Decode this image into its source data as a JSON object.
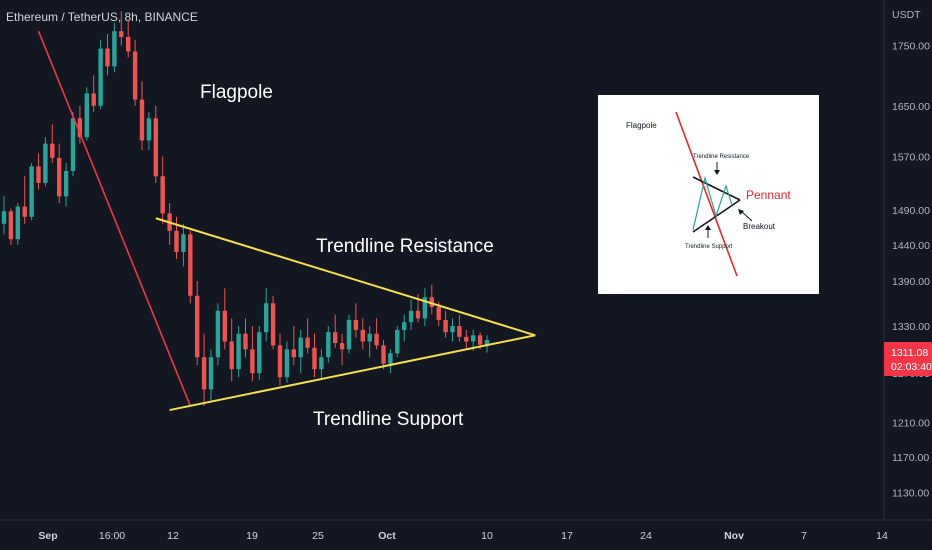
{
  "chart_data": {
    "type": "candlestick",
    "title": "Ethereum / TetherUS, 8h, BINANCE",
    "ylabel": "USDT",
    "ylim": [
      1100,
      1830
    ],
    "y_scale": "log",
    "y_ticks": [
      "1750.00",
      "1650.00",
      "1570.00",
      "1490.00",
      "1440.00",
      "1390.00",
      "1330.00",
      "1270.00",
      "1210.00",
      "1170.00",
      "1130.00"
    ],
    "x_ticks": [
      {
        "label": "Sep",
        "bold": true
      },
      {
        "label": "16:00",
        "bold": false
      },
      {
        "label": "12",
        "bold": false
      },
      {
        "label": "19",
        "bold": false
      },
      {
        "label": "25",
        "bold": false
      },
      {
        "label": "Oct",
        "bold": true
      },
      {
        "label": "10",
        "bold": false
      },
      {
        "label": "17",
        "bold": false
      },
      {
        "label": "24",
        "bold": false
      },
      {
        "label": "Nov",
        "bold": true
      },
      {
        "label": "7",
        "bold": false
      },
      {
        "label": "14",
        "bold": false
      }
    ],
    "last_price": {
      "value": "1311.08",
      "countdown": "02:03:40",
      "color": "#f23645"
    },
    "colors": {
      "up": "#26a69a",
      "down": "#ef5350",
      "pole": "#f23645",
      "trend": "#f5e04b"
    },
    "annotations": {
      "flagpole": "Flagpole",
      "resistance": "Trendline Resistance",
      "support": "Trendline Support"
    },
    "trendlines": {
      "flagpole": [
        [
          1775,
          5
        ],
        [
          1230,
          27
        ]
      ],
      "resistance": [
        [
          1478,
          22
        ],
        [
          1318,
          77
        ]
      ],
      "support": [
        [
          1225,
          24
        ],
        [
          1318,
          77
        ]
      ]
    },
    "bars": [
      [
        1470,
        1510,
        1455,
        1488
      ],
      [
        1488,
        1492,
        1440,
        1448
      ],
      [
        1448,
        1500,
        1440,
        1495
      ],
      [
        1495,
        1540,
        1470,
        1480
      ],
      [
        1480,
        1560,
        1475,
        1555
      ],
      [
        1555,
        1575,
        1520,
        1530
      ],
      [
        1530,
        1600,
        1525,
        1590
      ],
      [
        1590,
        1620,
        1560,
        1568
      ],
      [
        1568,
        1590,
        1500,
        1510
      ],
      [
        1510,
        1560,
        1495,
        1548
      ],
      [
        1548,
        1640,
        1540,
        1630
      ],
      [
        1630,
        1650,
        1590,
        1600
      ],
      [
        1600,
        1680,
        1595,
        1670
      ],
      [
        1670,
        1700,
        1640,
        1650
      ],
      [
        1650,
        1760,
        1645,
        1745
      ],
      [
        1745,
        1770,
        1700,
        1715
      ],
      [
        1715,
        1790,
        1705,
        1775
      ],
      [
        1775,
        1810,
        1750,
        1765
      ],
      [
        1765,
        1795,
        1730,
        1740
      ],
      [
        1740,
        1760,
        1650,
        1660
      ],
      [
        1660,
        1690,
        1580,
        1595
      ],
      [
        1595,
        1640,
        1580,
        1630
      ],
      [
        1630,
        1650,
        1530,
        1540
      ],
      [
        1540,
        1570,
        1470,
        1485
      ],
      [
        1485,
        1500,
        1440,
        1460
      ],
      [
        1460,
        1480,
        1420,
        1430
      ],
      [
        1430,
        1470,
        1410,
        1455
      ],
      [
        1455,
        1460,
        1360,
        1370
      ],
      [
        1370,
        1390,
        1280,
        1290
      ],
      [
        1290,
        1320,
        1230,
        1250
      ],
      [
        1250,
        1300,
        1235,
        1290
      ],
      [
        1290,
        1360,
        1280,
        1350
      ],
      [
        1350,
        1380,
        1300,
        1310
      ],
      [
        1310,
        1340,
        1260,
        1275
      ],
      [
        1275,
        1330,
        1265,
        1320
      ],
      [
        1320,
        1340,
        1290,
        1300
      ],
      [
        1300,
        1330,
        1260,
        1270
      ],
      [
        1270,
        1330,
        1262,
        1322
      ],
      [
        1322,
        1380,
        1310,
        1360
      ],
      [
        1360,
        1370,
        1300,
        1305
      ],
      [
        1305,
        1320,
        1255,
        1265
      ],
      [
        1265,
        1310,
        1258,
        1300
      ],
      [
        1300,
        1330,
        1280,
        1290
      ],
      [
        1290,
        1325,
        1270,
        1315
      ],
      [
        1315,
        1340,
        1295,
        1302
      ],
      [
        1302,
        1320,
        1265,
        1275
      ],
      [
        1275,
        1300,
        1262,
        1290
      ],
      [
        1290,
        1330,
        1283,
        1322
      ],
      [
        1322,
        1345,
        1302,
        1308
      ],
      [
        1308,
        1320,
        1280,
        1300
      ],
      [
        1300,
        1345,
        1295,
        1338
      ],
      [
        1338,
        1360,
        1315,
        1325
      ],
      [
        1325,
        1340,
        1300,
        1310
      ],
      [
        1310,
        1330,
        1290,
        1320
      ],
      [
        1320,
        1340,
        1300,
        1305
      ],
      [
        1305,
        1312,
        1275,
        1282
      ],
      [
        1282,
        1300,
        1270,
        1295
      ],
      [
        1295,
        1330,
        1290,
        1325
      ],
      [
        1325,
        1345,
        1310,
        1335
      ],
      [
        1335,
        1365,
        1325,
        1350
      ],
      [
        1350,
        1372,
        1335,
        1340
      ],
      [
        1340,
        1380,
        1330,
        1368
      ],
      [
        1368,
        1385,
        1345,
        1355
      ],
      [
        1355,
        1362,
        1330,
        1338
      ],
      [
        1338,
        1350,
        1315,
        1322
      ],
      [
        1322,
        1340,
        1310,
        1330
      ],
      [
        1330,
        1345,
        1310,
        1316
      ],
      [
        1316,
        1325,
        1300,
        1310
      ],
      [
        1310,
        1325,
        1298,
        1318
      ],
      [
        1318,
        1322,
        1300,
        1306
      ],
      [
        1306,
        1318,
        1296,
        1312
      ]
    ],
    "inset": {
      "labels": {
        "flagpole": "Flagpole",
        "resistance": "Trendline Resistance",
        "pennant": "Pennant",
        "breakout": "Breakout",
        "support": "Trendline Support"
      },
      "pennant_color": "#e8262b"
    }
  }
}
